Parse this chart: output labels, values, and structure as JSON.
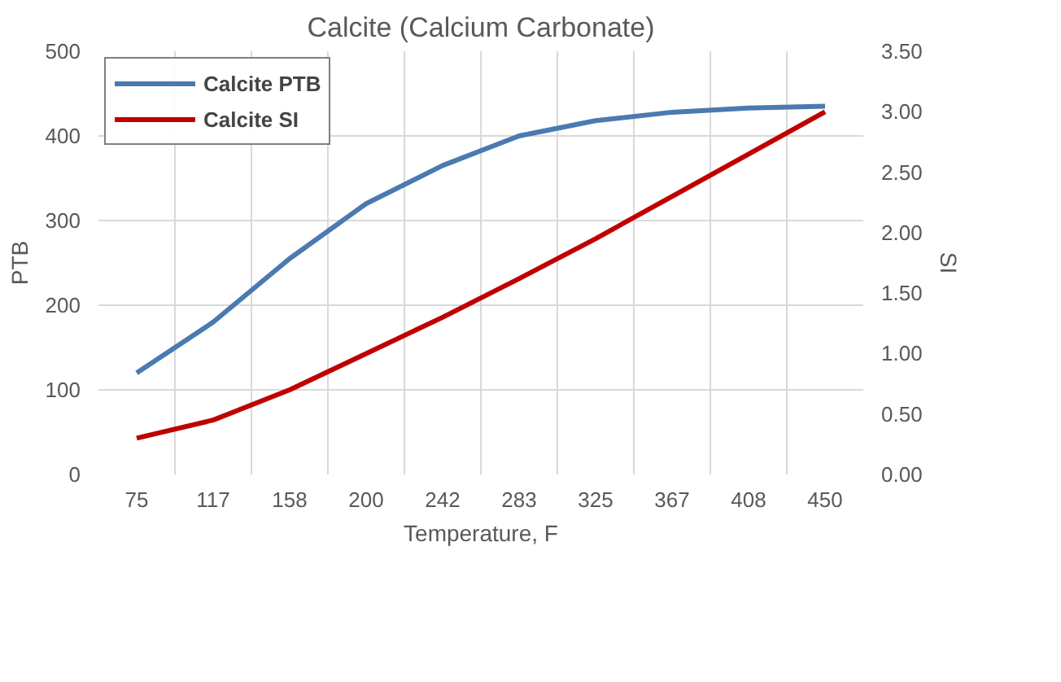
{
  "chart_data": {
    "type": "line",
    "title": "Calcite (Calcium Carbonate)",
    "xlabel": "Temperature, F",
    "ylabel": "PTB",
    "y2label": "SI",
    "categories": [
      "75",
      "117",
      "158",
      "200",
      "242",
      "283",
      "325",
      "367",
      "408",
      "450"
    ],
    "series": [
      {
        "name": "Calcite PTB",
        "color": "#4a7ab0",
        "values": [
          120,
          180,
          255,
          320,
          365,
          400,
          418,
          428,
          433,
          435
        ]
      },
      {
        "name": "Calcite SI",
        "color": "#c00000",
        "axis": "y2",
        "values": [
          0.3,
          0.45,
          0.7,
          1.0,
          1.3,
          1.62,
          1.95,
          2.3,
          2.65,
          3.0
        ]
      }
    ],
    "ylim": [
      0,
      500
    ],
    "yticks": [
      0,
      100,
      200,
      300,
      400,
      500
    ],
    "y2lim": [
      0,
      3.5
    ],
    "y2ticks": [
      {
        "value": 0,
        "label": "0.00"
      },
      {
        "value": 0.5,
        "label": "0.50"
      },
      {
        "value": 1,
        "label": "1.00"
      },
      {
        "value": 1.5,
        "label": "1.50"
      },
      {
        "value": 2,
        "label": "2.00"
      },
      {
        "value": 2.5,
        "label": "2.50"
      },
      {
        "value": 3,
        "label": "3.00"
      },
      {
        "value": 3.5,
        "label": "3.50"
      }
    ],
    "grid": true,
    "legend": "top left",
    "marker": "none",
    "line_style": "solid"
  }
}
